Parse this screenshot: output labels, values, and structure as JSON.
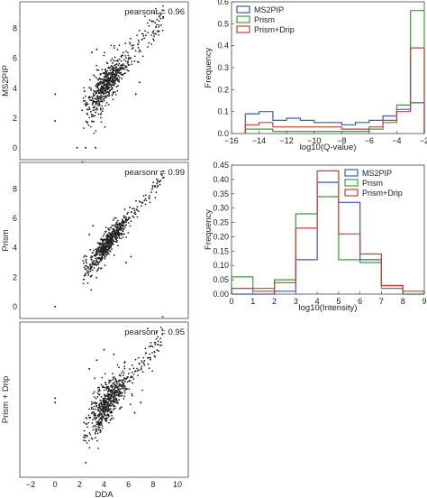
{
  "chart_data": [
    {
      "id": "scatter_ms2pip",
      "type": "scatter",
      "ylabel": "MS2PIP",
      "annotation": "pearsonr = 0.96",
      "xlim": [
        -2,
        10
      ],
      "ylim": [
        -0.8,
        9.8
      ],
      "xticks": [
        "−2",
        "0",
        "2",
        "4",
        "6",
        "8",
        "10"
      ],
      "yticks": [
        {
          "v": 0,
          "t": "0"
        },
        {
          "v": 2,
          "t": "2"
        },
        {
          "v": 4,
          "t": "4"
        },
        {
          "v": 6,
          "t": "6"
        },
        {
          "v": 8,
          "t": "8"
        }
      ],
      "show_xticks": false,
      "show_xlabel": false,
      "spread": 0.45,
      "outliers": [
        [
          0.0,
          3.6
        ],
        [
          0.0,
          1.8
        ],
        [
          1.8,
          0.0
        ],
        [
          2.5,
          0.0
        ],
        [
          3.3,
          0.0
        ],
        [
          2.4,
          3.8
        ],
        [
          2.8,
          2.7
        ],
        [
          6.6,
          3.6
        ],
        [
          6.9,
          4.4
        ],
        [
          3.0,
          6.4
        ],
        [
          3.4,
          6.6
        ]
      ]
    },
    {
      "id": "scatter_prism",
      "type": "scatter",
      "ylabel": "Prism",
      "annotation": "pearsonr = 0.99",
      "xlim": [
        -2,
        10
      ],
      "ylim": [
        -0.8,
        9.8
      ],
      "xticks": [
        "−2",
        "0",
        "2",
        "4",
        "6",
        "8",
        "10"
      ],
      "yticks": [
        {
          "v": 0,
          "t": "0"
        },
        {
          "v": 2,
          "t": "2"
        },
        {
          "v": 4,
          "t": "4"
        },
        {
          "v": 6,
          "t": "6"
        },
        {
          "v": 8,
          "t": "8"
        }
      ],
      "show_xticks": false,
      "show_xlabel": false,
      "spread": 0.28,
      "outliers": [
        [
          0.0,
          0.0
        ],
        [
          2.8,
          4.9
        ],
        [
          3.1,
          5.5
        ],
        [
          6.2,
          3.4
        ],
        [
          5.8,
          3.0
        ]
      ]
    },
    {
      "id": "scatter_prism_drip",
      "type": "scatter",
      "ylabel": "Prism + Drip",
      "annotation": "pearsonr = 0.95",
      "xlabel": "DDA",
      "xlim": [
        -2,
        10
      ],
      "ylim": [
        -0.8,
        9.8
      ],
      "xticks": [
        "−2",
        "0",
        "2",
        "4",
        "6",
        "8",
        "10"
      ],
      "yticks": [],
      "show_xticks": true,
      "show_xlabel": true,
      "spread": 0.5,
      "outliers": [
        [
          0.0,
          4.6
        ],
        [
          0.0,
          4.3
        ],
        [
          2.5,
          0.2
        ],
        [
          2.8,
          6.6
        ],
        [
          3.4,
          7.2
        ],
        [
          4.0,
          7.9
        ],
        [
          4.8,
          7.6
        ],
        [
          6.5,
          3.6
        ],
        [
          7.0,
          4.3
        ]
      ]
    },
    {
      "id": "hist_qvalue",
      "type": "step",
      "xlabel": "log10(Q-value)",
      "ylabel": "Frequency",
      "xlim": [
        -16,
        -2
      ],
      "ylim": [
        0,
        0.6
      ],
      "xticks": [
        {
          "v": -16,
          "t": "−16"
        },
        {
          "v": -14,
          "t": "−14"
        },
        {
          "v": -12,
          "t": "−12"
        },
        {
          "v": -10,
          "t": "−10"
        },
        {
          "v": -8,
          "t": "−8"
        },
        {
          "v": -6,
          "t": "−6"
        },
        {
          "v": -4,
          "t": "−4"
        },
        {
          "v": -2,
          "t": "−2"
        }
      ],
      "yticks": [
        {
          "v": 0.0,
          "t": "0.0"
        },
        {
          "v": 0.1,
          "t": "0.1"
        },
        {
          "v": 0.2,
          "t": "0.2"
        },
        {
          "v": 0.3,
          "t": "0.3"
        },
        {
          "v": 0.4,
          "t": "0.4"
        },
        {
          "v": 0.5,
          "t": "0.5"
        },
        {
          "v": 0.6,
          "t": "0.6"
        }
      ],
      "bin_edges": [
        -15.0,
        -14.0,
        -13.0,
        -12.0,
        -11.0,
        -10.0,
        -9.0,
        -8.0,
        -7.0,
        -6.0,
        -5.0,
        -4.0,
        -3.0,
        -2.0
      ],
      "legend": "top-left",
      "series": [
        {
          "name": "MS2PIP",
          "color": "#3a5da9",
          "values": [
            0.09,
            0.1,
            0.06,
            0.07,
            0.06,
            0.05,
            0.05,
            0.04,
            0.05,
            0.06,
            0.08,
            0.11,
            0.14
          ]
        },
        {
          "name": "Prism",
          "color": "#3f9b3f",
          "values": [
            0.02,
            0.02,
            0.01,
            0.01,
            0.01,
            0.01,
            0.01,
            0.01,
            0.01,
            0.02,
            0.05,
            0.13,
            0.56
          ]
        },
        {
          "name": "Prism+Drip",
          "color": "#c0403a",
          "values": [
            0.04,
            0.05,
            0.03,
            0.03,
            0.03,
            0.03,
            0.03,
            0.02,
            0.02,
            0.03,
            0.06,
            0.1,
            0.39
          ]
        }
      ]
    },
    {
      "id": "hist_intensity",
      "type": "step",
      "xlabel": "log10(Intensity)",
      "ylabel": "Frequency",
      "xlim": [
        0,
        9
      ],
      "ylim": [
        0,
        0.45
      ],
      "xticks": [
        {
          "v": 0,
          "t": "0"
        },
        {
          "v": 1,
          "t": "1"
        },
        {
          "v": 2,
          "t": "2"
        },
        {
          "v": 3,
          "t": "3"
        },
        {
          "v": 4,
          "t": "4"
        },
        {
          "v": 5,
          "t": "5"
        },
        {
          "v": 6,
          "t": "6"
        },
        {
          "v": 7,
          "t": "7"
        },
        {
          "v": 8,
          "t": "8"
        },
        {
          "v": 9,
          "t": "9"
        }
      ],
      "yticks": [
        {
          "v": 0.0,
          "t": "0.00"
        },
        {
          "v": 0.05,
          "t": "0.05"
        },
        {
          "v": 0.1,
          "t": "0.10"
        },
        {
          "v": 0.15,
          "t": "0.15"
        },
        {
          "v": 0.2,
          "t": "0.20"
        },
        {
          "v": 0.25,
          "t": "0.25"
        },
        {
          "v": 0.3,
          "t": "0.30"
        },
        {
          "v": 0.35,
          "t": "0.35"
        },
        {
          "v": 0.4,
          "t": "0.40"
        },
        {
          "v": 0.45,
          "t": "0.45"
        }
      ],
      "bin_edges": [
        0,
        1,
        2,
        3,
        4,
        5,
        6,
        7,
        8,
        9
      ],
      "legend": "top-right",
      "series": [
        {
          "name": "MS2PIP",
          "color": "#3a5da9",
          "values": [
            0.0,
            0.0,
            0.01,
            0.12,
            0.39,
            0.32,
            0.12,
            0.03,
            0.0
          ]
        },
        {
          "name": "Prism",
          "color": "#3f9b3f",
          "values": [
            0.06,
            0.02,
            0.05,
            0.28,
            0.34,
            0.12,
            0.11,
            0.02,
            0.0
          ]
        },
        {
          "name": "Prism+Drip",
          "color": "#c0403a",
          "values": [
            0.02,
            0.01,
            0.04,
            0.23,
            0.43,
            0.21,
            0.14,
            0.03,
            0.01
          ]
        }
      ]
    }
  ]
}
